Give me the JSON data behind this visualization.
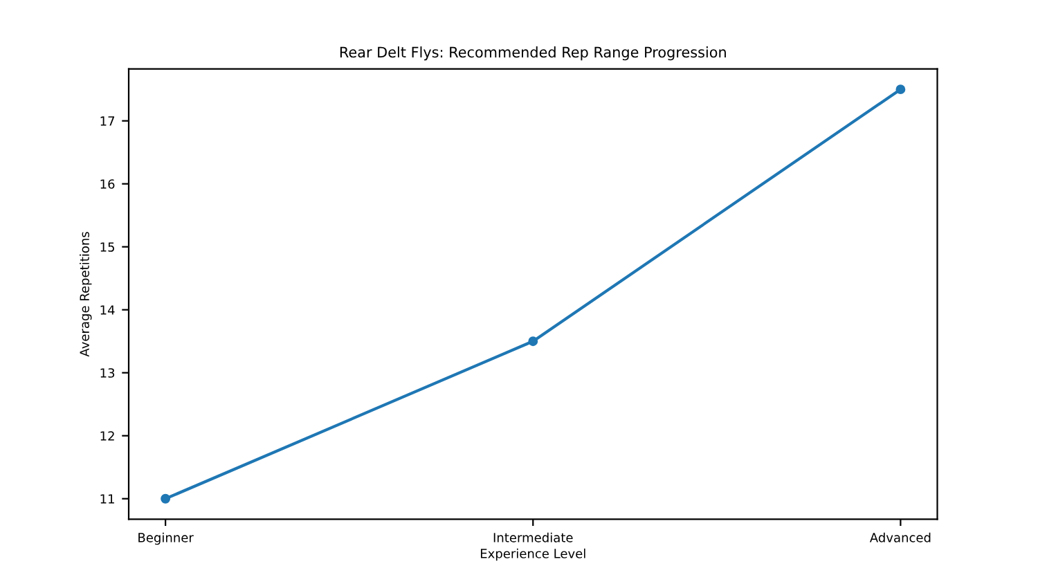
{
  "chart_data": {
    "type": "line",
    "title": "Rear Delt Flys: Recommended Rep Range Progression",
    "xlabel": "Experience Level",
    "ylabel": "Average Repetitions",
    "categories": [
      "Beginner",
      "Intermediate",
      "Advanced"
    ],
    "series": [
      {
        "color": "#1f77b4",
        "values": [
          11,
          13.5,
          17.5
        ]
      }
    ],
    "marker": "circle",
    "ylim": [
      10.675,
      17.825
    ],
    "yticks": [
      11,
      12,
      13,
      14,
      15,
      16,
      17
    ],
    "grid": false,
    "legend": false
  }
}
